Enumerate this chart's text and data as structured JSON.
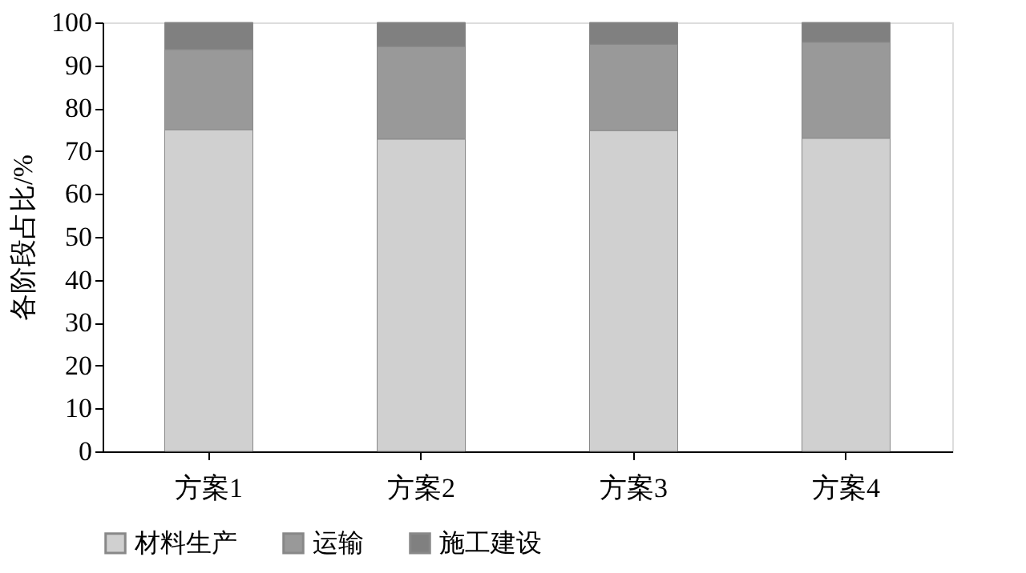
{
  "chart_data": {
    "type": "bar",
    "stacked": true,
    "ylabel": "各阶段占比/%",
    "categories": [
      "方案1",
      "方案2",
      "方案3",
      "方案4"
    ],
    "series": [
      {
        "name": "材料生产",
        "color": "#d0d0d0",
        "values": [
          75.0,
          72.8,
          74.8,
          73.0
        ]
      },
      {
        "name": "运输",
        "color": "#999999",
        "values": [
          18.7,
          21.6,
          20.1,
          22.4
        ]
      },
      {
        "name": "施工建设",
        "color": "#808080",
        "values": [
          6.3,
          5.6,
          5.1,
          4.6
        ]
      }
    ],
    "ylim": [
      0,
      100
    ],
    "yticks": [
      0,
      10,
      20,
      30,
      40,
      50,
      60,
      70,
      80,
      90,
      100
    ],
    "grid": false,
    "legend": "bottom"
  }
}
